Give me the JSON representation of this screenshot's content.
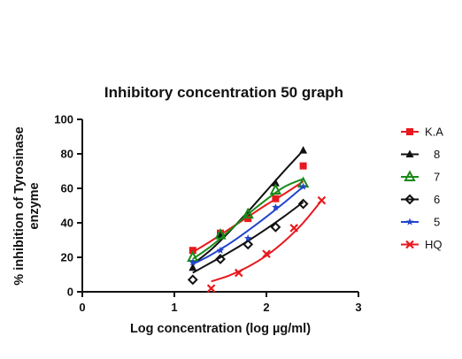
{
  "chart_data": {
    "type": "scatter",
    "title": "Inhibitory concentration 50 graph",
    "xlabel": "Log concentration (log µg/ml)",
    "ylabel_lines": [
      "% inhibition of Tyrosinase",
      "enzyme"
    ],
    "xlim": [
      0,
      3
    ],
    "ylim": [
      0,
      100
    ],
    "x_ticks": [
      0,
      1,
      2,
      3
    ],
    "y_ticks": [
      0,
      20,
      40,
      60,
      80,
      100
    ],
    "legend_position": "right",
    "series": [
      {
        "name": "K.A",
        "color": "#e8191e",
        "marker": "square",
        "points": [
          [
            1.2,
            24
          ],
          [
            1.5,
            34
          ],
          [
            1.8,
            42.5
          ],
          [
            2.1,
            54
          ],
          [
            2.4,
            73
          ]
        ],
        "curve": [
          [
            1.2,
            23
          ],
          [
            1.4,
            29.5
          ],
          [
            1.6,
            36.5
          ],
          [
            1.8,
            43.5
          ],
          [
            2.0,
            50.5
          ],
          [
            2.2,
            57
          ],
          [
            2.4,
            64
          ]
        ]
      },
      {
        "name": "8",
        "color": "#111111",
        "marker": "triangle",
        "points": [
          [
            1.2,
            14
          ],
          [
            1.5,
            33
          ],
          [
            1.8,
            46
          ],
          [
            2.1,
            63
          ],
          [
            2.4,
            82
          ]
        ],
        "curve": [
          [
            1.2,
            16
          ],
          [
            1.4,
            24.5
          ],
          [
            1.6,
            35
          ],
          [
            1.8,
            46.5
          ],
          [
            2.0,
            58.5
          ],
          [
            2.2,
            70.5
          ],
          [
            2.4,
            82
          ]
        ]
      },
      {
        "name": "7",
        "color": "#1a8a1a",
        "marker": "open-triangle",
        "points": [
          [
            1.2,
            20
          ],
          [
            1.5,
            33
          ],
          [
            1.8,
            45
          ],
          [
            2.1,
            59
          ],
          [
            2.4,
            63
          ]
        ],
        "curve": [
          [
            1.2,
            19
          ],
          [
            1.4,
            26.5
          ],
          [
            1.6,
            35.5
          ],
          [
            1.8,
            45
          ],
          [
            2.0,
            53.5
          ],
          [
            2.2,
            61
          ],
          [
            2.4,
            65.5
          ]
        ]
      },
      {
        "name": "6",
        "color": "#111111",
        "marker": "open-diamond",
        "points": [
          [
            1.2,
            7
          ],
          [
            1.5,
            19
          ],
          [
            1.8,
            27.5
          ],
          [
            2.1,
            37.5
          ],
          [
            2.4,
            51
          ]
        ],
        "curve": [
          [
            1.2,
            11
          ],
          [
            1.4,
            17
          ],
          [
            1.6,
            23
          ],
          [
            1.8,
            29.5
          ],
          [
            2.0,
            36.5
          ],
          [
            2.2,
            44
          ],
          [
            2.4,
            52
          ]
        ]
      },
      {
        "name": "5",
        "color": "#2244cc",
        "marker": "star",
        "points": [
          [
            1.2,
            17
          ],
          [
            1.5,
            24
          ],
          [
            1.8,
            31
          ],
          [
            2.1,
            49
          ],
          [
            2.4,
            61
          ]
        ],
        "curve": [
          [
            1.2,
            16
          ],
          [
            1.4,
            21.5
          ],
          [
            1.6,
            28
          ],
          [
            1.8,
            35.5
          ],
          [
            2.0,
            43.5
          ],
          [
            2.2,
            52
          ],
          [
            2.4,
            61
          ]
        ]
      },
      {
        "name": "HQ",
        "color": "#e8191e",
        "marker": "x",
        "points": [
          [
            1.4,
            2
          ],
          [
            1.7,
            11
          ],
          [
            2.0,
            22
          ],
          [
            2.3,
            37
          ],
          [
            2.6,
            53
          ]
        ],
        "curve": [
          [
            1.4,
            6
          ],
          [
            1.6,
            9.5
          ],
          [
            1.8,
            14.5
          ],
          [
            2.0,
            21
          ],
          [
            2.2,
            29.5
          ],
          [
            2.4,
            40
          ],
          [
            2.6,
            53
          ]
        ]
      }
    ]
  }
}
